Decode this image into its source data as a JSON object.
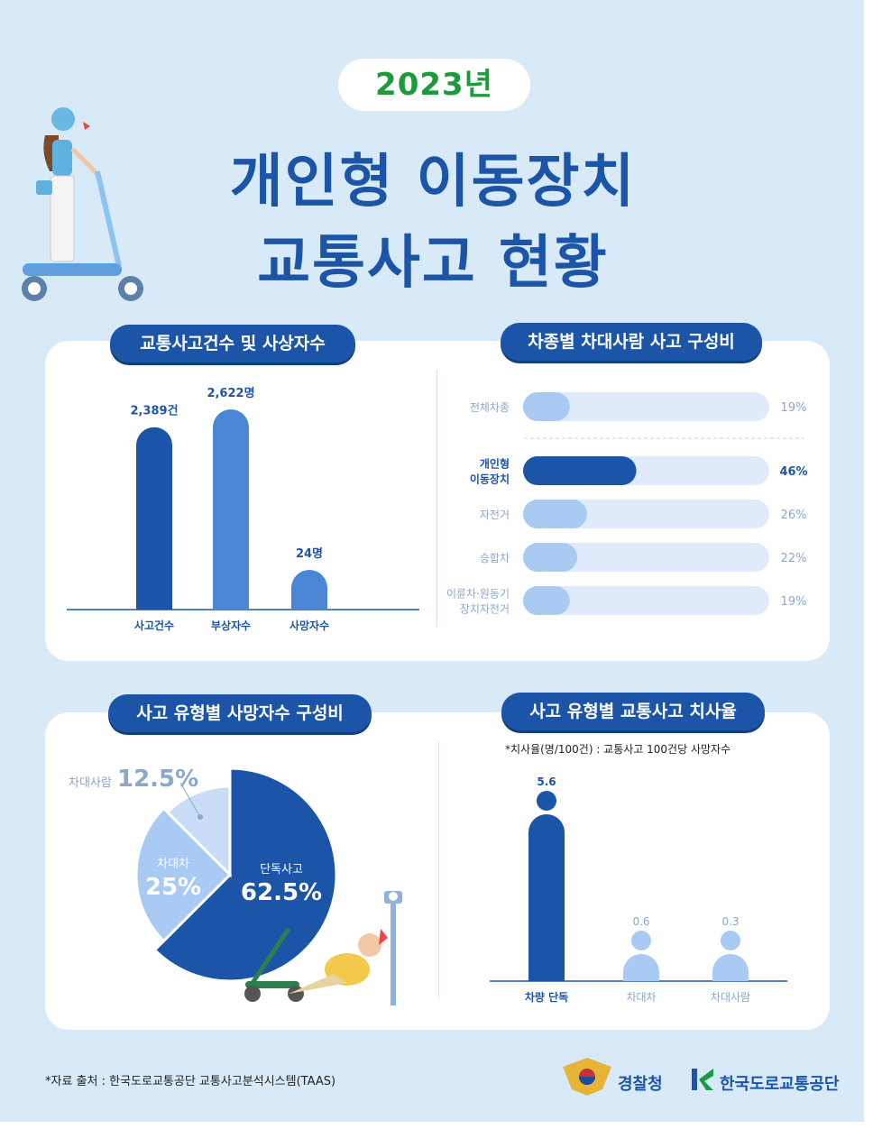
{
  "header": {
    "year": "2023년",
    "title_line1": "개인형 이동장치",
    "title_line2": "교통사고 현황"
  },
  "sections": {
    "s1": "교통사고건수 및 사상자수",
    "s2": "차종별 차대사람 사고 구성비",
    "s3": "사고 유형별 사망자수 구성비",
    "s4": "사고 유형별 교통사고 치사율"
  },
  "note_fatality": "*치사율(명/100건) : 교통사고 100건당 사망자수",
  "source": "*자료 출처 : 한국도로교통공단 교통사고분석시스템(TAAS)",
  "logos": {
    "police": "경찰청",
    "koroad": "한국도로교통공단"
  },
  "colors": {
    "dark": "#1c55a8",
    "mid": "#4a86d4",
    "light": "#a9caf3",
    "pale": "#c9ddf7",
    "track": "#dfebfa"
  },
  "chart_data": [
    {
      "type": "bar",
      "title": "교통사고건수 및 사상자수",
      "categories": [
        "사고건수",
        "부상자수",
        "사망자수"
      ],
      "values": [
        2389,
        2622,
        24
      ],
      "labels": [
        "2,389건",
        "2,622명",
        "24명"
      ]
    },
    {
      "type": "bar",
      "title": "차종별 차대사람 사고 구성비",
      "orientation": "horizontal",
      "categories": [
        "전체차종",
        "개인형\n이동장치",
        "자전거",
        "승합차",
        "이륜차·원동기\n장치자전거"
      ],
      "values": [
        19,
        46,
        26,
        22,
        19
      ],
      "labels": [
        "19%",
        "46%",
        "26%",
        "22%",
        "19%"
      ],
      "highlight": "개인형\n이동장치"
    },
    {
      "type": "pie",
      "title": "사고 유형별 사망자수 구성비",
      "categories": [
        "단독사고",
        "차대차",
        "차대사람"
      ],
      "values": [
        62.5,
        25,
        12.5
      ],
      "labels": [
        "62.5%",
        "25%",
        "12.5%"
      ]
    },
    {
      "type": "bar",
      "title": "사고 유형별 교통사고 치사율",
      "categories": [
        "차량 단독",
        "차대차",
        "차대사람"
      ],
      "values": [
        5.6,
        0.6,
        0.3
      ],
      "labels": [
        "5.6",
        "0.6",
        "0.3"
      ]
    }
  ]
}
